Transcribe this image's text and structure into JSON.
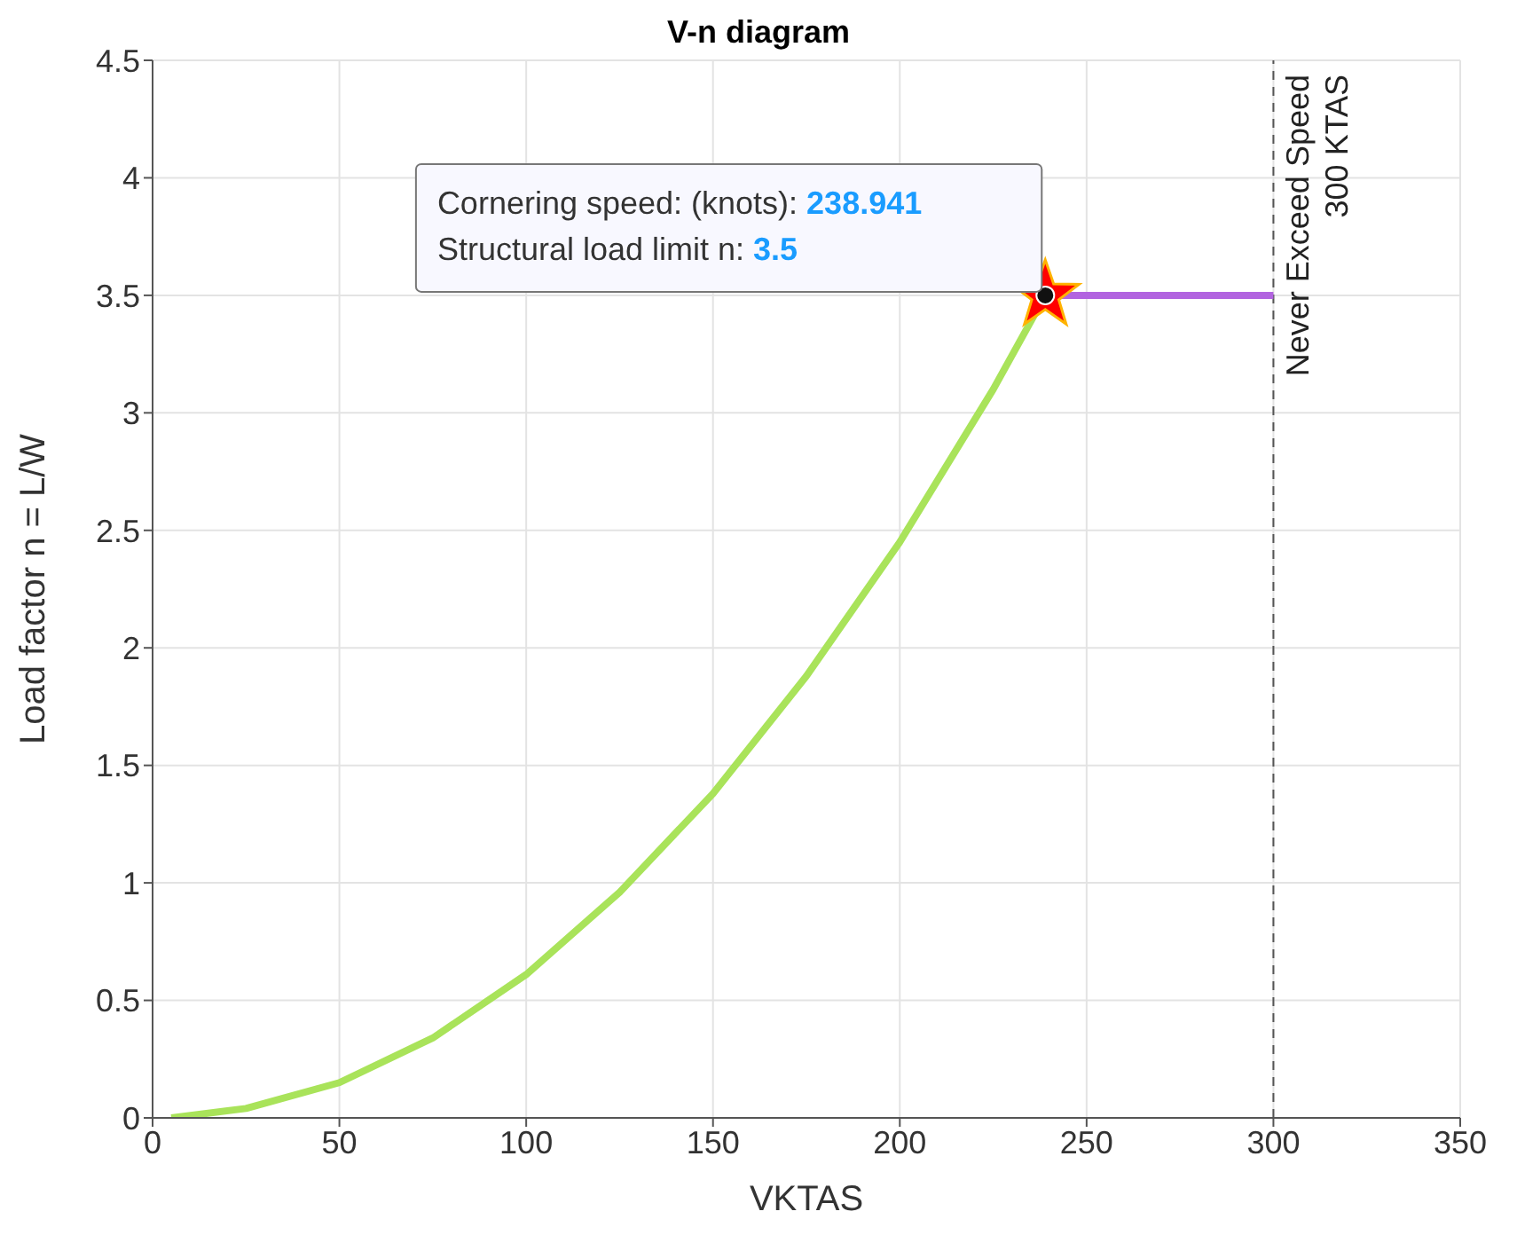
{
  "chart_data": {
    "type": "line",
    "title": "V-n diagram",
    "xlabel": "VKTAS",
    "ylabel": "Load factor n = L/W",
    "xlim": [
      0,
      350
    ],
    "xticks": [
      0,
      50,
      100,
      150,
      200,
      250,
      300,
      350
    ],
    "ylim": [
      0,
      4.5
    ],
    "yticks": [
      0,
      0.5,
      1,
      1.5,
      2,
      2.5,
      3,
      3.5,
      4,
      4.5
    ],
    "grid": true,
    "series": [
      {
        "color": "#a9e35a",
        "x": [
          5,
          25,
          50,
          75,
          100,
          125,
          150,
          175,
          200,
          225,
          238.941
        ],
        "values": [
          0,
          0.04,
          0.15,
          0.34,
          0.61,
          0.96,
          1.38,
          1.88,
          2.45,
          3.1,
          3.5
        ]
      },
      {
        "type": "line",
        "color": "#b264e0",
        "x": [
          238.941,
          300
        ],
        "values": [
          3.5,
          3.5
        ]
      },
      {
        "type": "scatter",
        "color": "#ff0000",
        "marker": "star",
        "x": [
          238.941
        ],
        "values": [
          3.5
        ]
      }
    ],
    "ref_lines": [
      {
        "axis": "x",
        "value": 300,
        "label": "Never Exceed Speed\n300 KTAS",
        "color": "#555555",
        "line_style": "dashed"
      }
    ],
    "annotations": [
      "Cornering speed: (knots): 238.941",
      "Structural load limit n: 3.5"
    ]
  }
}
